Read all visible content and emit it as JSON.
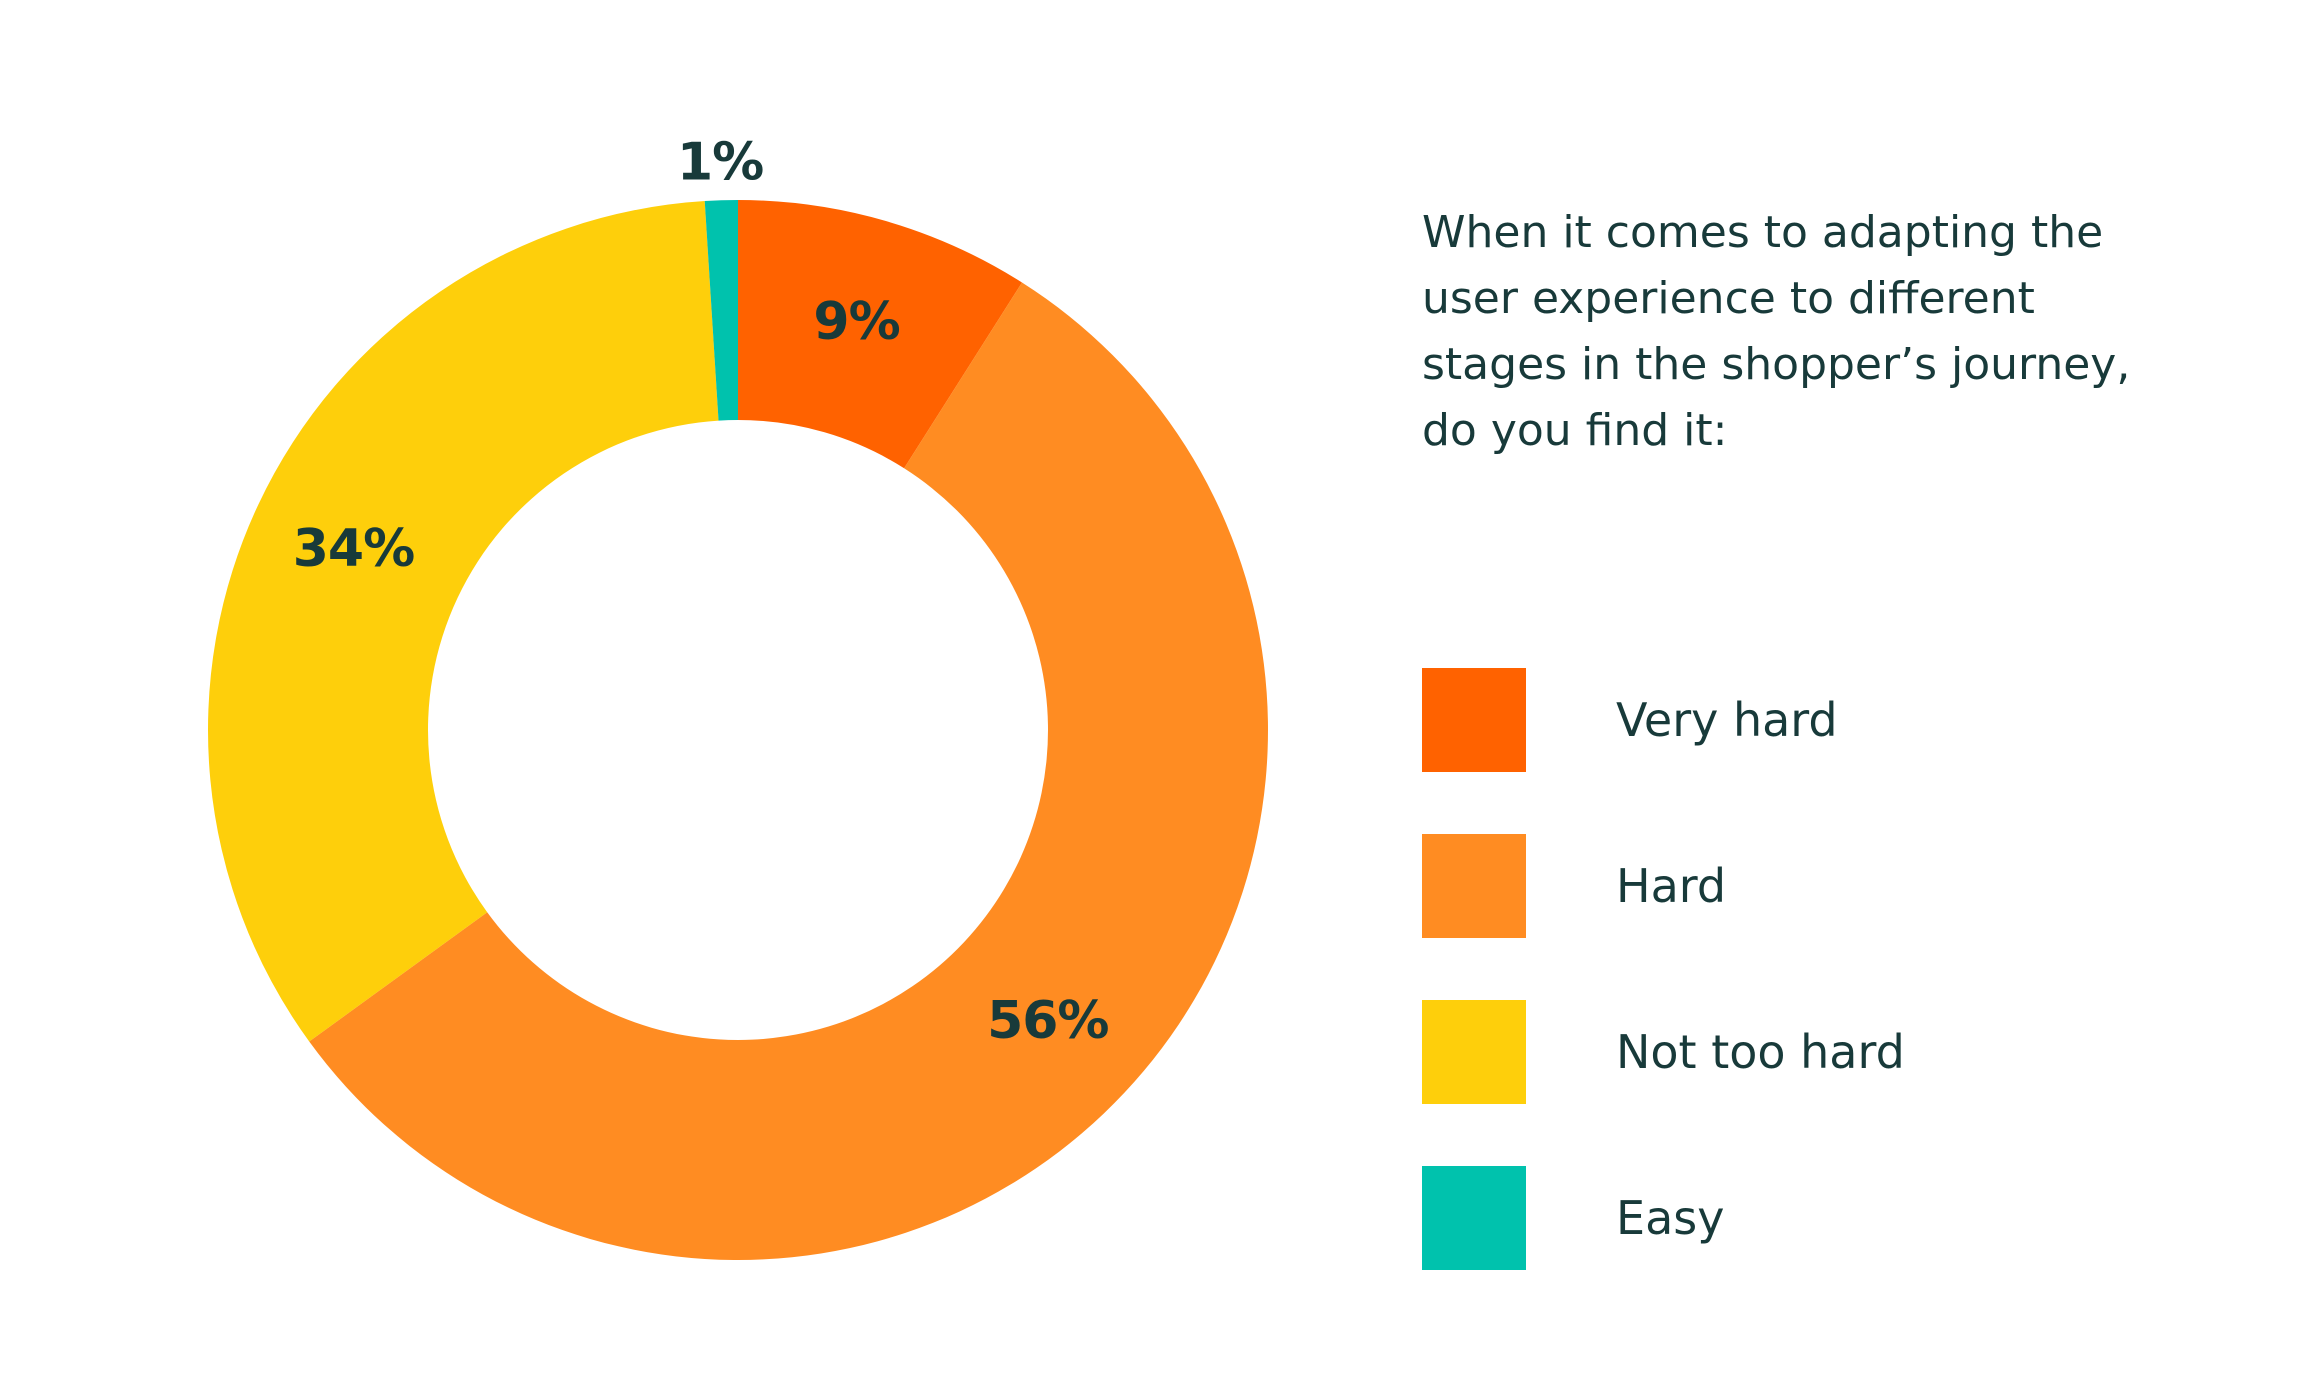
{
  "chart_data": {
    "type": "pie",
    "subtype": "donut",
    "title": "When it comes to adapting the user experience to different stages in the shopper’s journey, do you find it:",
    "categories": [
      "Very hard",
      "Hard",
      "Not too hard",
      "Easy"
    ],
    "values": [
      9,
      56,
      34,
      1
    ],
    "value_labels": [
      "9%",
      "56%",
      "34%",
      "1%"
    ],
    "unit": "%",
    "colors": [
      "#ff6200",
      "#ff8c22",
      "#fecf0b",
      "#00c2ad"
    ],
    "legend_position": "right",
    "start_angle": "top, clockwise"
  }
}
